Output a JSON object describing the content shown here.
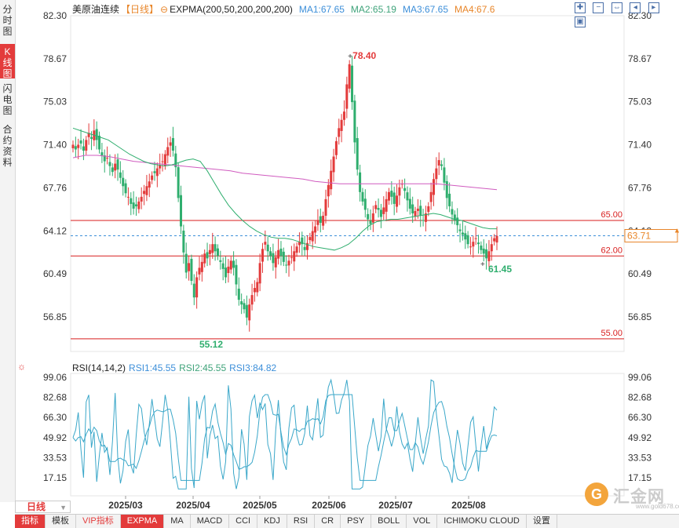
{
  "side_tabs": [
    {
      "label": "分时图",
      "active": false
    },
    {
      "label": "K线图",
      "active": true
    },
    {
      "label": "闪电图",
      "active": false
    },
    {
      "label": "合约资料",
      "active": false
    }
  ],
  "header": {
    "symbol": "美原油连续",
    "period": "【日线】",
    "toggle_icon": "⊖",
    "indicator": "EXPMA(200,50,200,200,200)",
    "ma1": "MA1:67.65",
    "ma2": "MA2:65.19",
    "ma3": "MA3:67.65",
    "ma4": "MA4:67.6"
  },
  "toolbar_icons": [
    "zoom-in-icon",
    "zoom-out-icon",
    "expand-icon",
    "scroll-left-icon",
    "scroll-right-icon",
    "restore-icon"
  ],
  "price_axis": {
    "ticks": [
      "82.30",
      "78.67",
      "75.03",
      "71.40",
      "67.76",
      "64.12",
      "60.49",
      "56.85"
    ],
    "current_price": "63.71"
  },
  "hlines": [
    {
      "label": "65.00",
      "value": 65.0,
      "color": "#d81e1e"
    },
    {
      "label": "62.00",
      "value": 62.0,
      "color": "#d81e1e"
    },
    {
      "label": "55.00",
      "value": 55.0,
      "color": "#d81e1e"
    }
  ],
  "annotations": {
    "high": "78.40",
    "low": "55.12",
    "recent_low": "61.45"
  },
  "rsi": {
    "icon": "sun-icon",
    "name": "RSI(14,14,2)",
    "rsi1": "RSI1:45.55",
    "rsi2": "RSI2:45.55",
    "rsi3": "RSI3:84.82",
    "ticks": [
      "99.06",
      "82.68",
      "66.30",
      "49.92",
      "33.53",
      "17.15"
    ]
  },
  "x_axis": [
    "2025/03",
    "2025/04",
    "2025/05",
    "2025/06",
    "2025/07",
    "2025/08"
  ],
  "period_button": "日线",
  "bottom_bar": [
    {
      "label": "指标",
      "type": "active"
    },
    {
      "label": "模板",
      "type": "normal"
    },
    {
      "label": "VIP指标",
      "type": "vip"
    },
    {
      "label": "EXPMA",
      "type": "active"
    },
    {
      "label": "MA",
      "type": "normal"
    },
    {
      "label": "MACD",
      "type": "normal"
    },
    {
      "label": "CCI",
      "type": "normal"
    },
    {
      "label": "KDJ",
      "type": "normal"
    },
    {
      "label": "RSI",
      "type": "normal"
    },
    {
      "label": "CR",
      "type": "normal"
    },
    {
      "label": "PSY",
      "type": "normal"
    },
    {
      "label": "BOLL",
      "type": "normal"
    },
    {
      "label": "VOL",
      "type": "normal"
    },
    {
      "label": "ICHIMOKU CLOUD",
      "type": "normal"
    },
    {
      "label": "设置",
      "type": "normal"
    }
  ],
  "logo": {
    "text": "汇金网",
    "url": "www.gold678.com"
  },
  "colors": {
    "up": "#e33b3b",
    "down": "#2fae6e",
    "ema50": "#2fae6e",
    "ema200": "#d05bbf",
    "hline": "#d81e1e",
    "current": "#3d8fd9"
  },
  "chart_data": {
    "type": "candlestick",
    "y_range": [
      53.8,
      83.0
    ],
    "closes": [
      71.4,
      71.0,
      71.4,
      71.5,
      70.9,
      71.8,
      72.4,
      71.9,
      72.6,
      71.8,
      71.0,
      70.5,
      70.0,
      70.3,
      69.6,
      69.1,
      69.8,
      69.3,
      68.6,
      67.9,
      67.3,
      67.0,
      66.4,
      66.0,
      66.2,
      66.6,
      67.0,
      67.5,
      67.9,
      68.3,
      68.8,
      69.0,
      69.4,
      69.7,
      70.0,
      70.6,
      71.2,
      71.6,
      70.9,
      69.5,
      66.9,
      64.5,
      62.3,
      60.6,
      61.4,
      59.9,
      58.5,
      60.2,
      61.0,
      61.5,
      62.2,
      61.8,
      62.5,
      63.0,
      62.4,
      62.0,
      61.5,
      60.9,
      60.2,
      61.1,
      61.6,
      61.0,
      59.6,
      58.3,
      57.9,
      57.5,
      56.8,
      57.9,
      58.7,
      59.3,
      59.8,
      61.4,
      62.6,
      63.2,
      62.4,
      62.0,
      61.4,
      61.9,
      62.5,
      62.0,
      61.5,
      61.2,
      61.6,
      61.9,
      62.4,
      62.8,
      63.2,
      63.0,
      62.5,
      63.1,
      63.6,
      64.1,
      64.5,
      65.0,
      64.8,
      65.4,
      66.8,
      68.0,
      69.2,
      70.4,
      71.7,
      72.8,
      73.5,
      74.2,
      76.5,
      78.2,
      75.0,
      71.6,
      69.3,
      67.4,
      66.6,
      65.9,
      65.1,
      64.7,
      65.6,
      66.3,
      65.9,
      65.3,
      66.1,
      66.8,
      67.4,
      67.0,
      66.4,
      67.1,
      67.8,
      68.1,
      67.5,
      66.7,
      66.0,
      65.6,
      65.8,
      66.0,
      65.4,
      65.0,
      65.6,
      66.2,
      67.4,
      68.5,
      69.4,
      70.1,
      69.6,
      68.2,
      66.9,
      66.2,
      65.5,
      65.0,
      64.6,
      64.1,
      63.8,
      63.4,
      63.0,
      62.8,
      63.2,
      63.5,
      63.0,
      62.5,
      62.2,
      61.8,
      62.4,
      63.0,
      63.5,
      63.7
    ],
    "ema50": [
      72.8,
      72.6,
      72.4,
      72.2,
      72.0,
      71.8,
      71.4,
      71.0,
      70.6,
      70.3,
      70.0,
      69.8,
      69.7,
      69.6,
      69.7,
      69.9,
      70.1,
      70.2,
      70.0,
      69.2,
      68.2,
      67.2,
      66.3,
      65.6,
      65.0,
      64.5,
      64.1,
      63.8,
      63.6,
      63.5,
      63.5,
      63.4,
      63.2,
      63.0,
      62.8,
      62.7,
      62.6,
      62.5,
      62.7,
      63.0,
      63.5,
      64.1,
      64.6,
      64.9,
      65.0,
      65.1,
      65.1,
      65.2,
      65.3,
      65.4,
      65.5,
      65.6,
      65.5,
      65.3,
      65.1,
      65.0,
      64.8,
      64.6,
      64.4,
      64.3,
      64.3
    ],
    "ema200": [
      70.3,
      70.5,
      70.5,
      70.4,
      70.2,
      70.0,
      69.9,
      69.8,
      69.7,
      69.6,
      69.5,
      69.4,
      69.3,
      69.2,
      69.0,
      68.9,
      68.8,
      68.7,
      68.6,
      68.5,
      68.3,
      68.2,
      68.1,
      68.1,
      68.1,
      68.1,
      68.1,
      68.1,
      68.1,
      68.1,
      68.1,
      68.0,
      67.9,
      67.8,
      67.7,
      67.6
    ]
  }
}
